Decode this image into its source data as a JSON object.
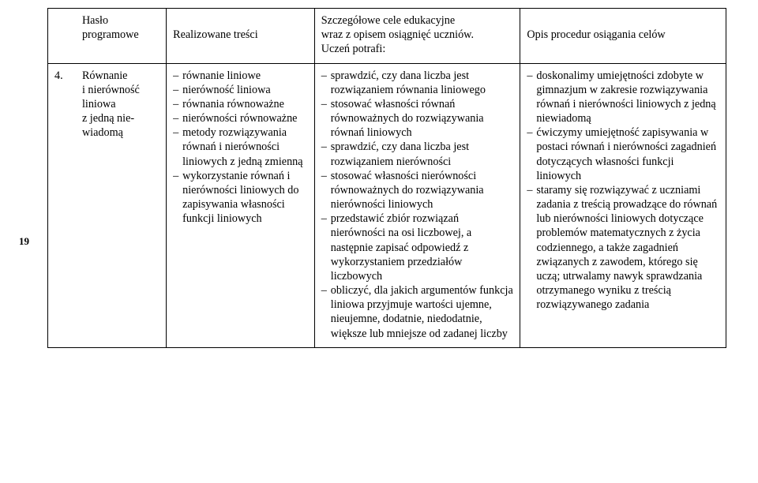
{
  "pageNumber": "19",
  "headers": {
    "col1_line1": "Hasło",
    "col1_line2": "programowe",
    "col2": "Realizowane treści",
    "col3_line1": "Szczegółowe cele edukacyjne",
    "col3_line2": "wraz z opisem osiągnięć uczniów.",
    "col3_line3": "Uczeń potrafi:",
    "col4": "Opis procedur osiągania celów"
  },
  "row": {
    "num": "4.",
    "topic_l1": "Równanie",
    "topic_l2": "i nierówność",
    "topic_l3": "liniowa",
    "topic_l4": "z jedną nie-",
    "topic_l5": "wiadomą",
    "contents": [
      "równanie liniowe",
      "nierówność liniowa",
      "równania równoważne",
      "nierówności równoważne",
      "metody rozwiązywania równań i nierówności liniowych z jedną zmienną",
      "wykorzystanie równań i nierówności liniowych do zapisywania własności funkcji liniowych"
    ],
    "goals": [
      "sprawdzić, czy dana liczba jest rozwiązaniem równania liniowego",
      "stosować własności równań równoważnych do rozwiązywania równań liniowych",
      "sprawdzić, czy dana liczba jest rozwiązaniem nierówności",
      "stosować własności nierówności równoważnych do rozwiązywania nierówności liniowych",
      "przedstawić zbiór rozwiązań nierówności na osi liczbowej, a następnie zapisać odpowiedź z wykorzystaniem przedziałów liczbowych",
      "obliczyć, dla jakich argumentów funkcja liniowa przyjmuje wartości ujemne, nieujemne, dodatnie, niedodatnie, większe lub mniejsze od zadanej liczby"
    ],
    "procedures": [
      "doskonalimy umiejętności zdobyte w gimnazjum w zakresie rozwiązywania równań i nierówności liniowych z jedną niewiadomą",
      "ćwiczymy umiejętność zapisywania w postaci równań i nierówności zagadnień dotyczących własności funkcji liniowych",
      "staramy się rozwiązywać z uczniami zadania z treścią prowadzące do równań lub nierówności liniowych dotyczące problemów matematycznych z życia codziennego, a także zagadnień związanych z zawodem, którego się uczą; utrwalamy nawyk sprawdzania otrzymanego wyniku z treścią rozwiązywanego zadania"
    ]
  }
}
